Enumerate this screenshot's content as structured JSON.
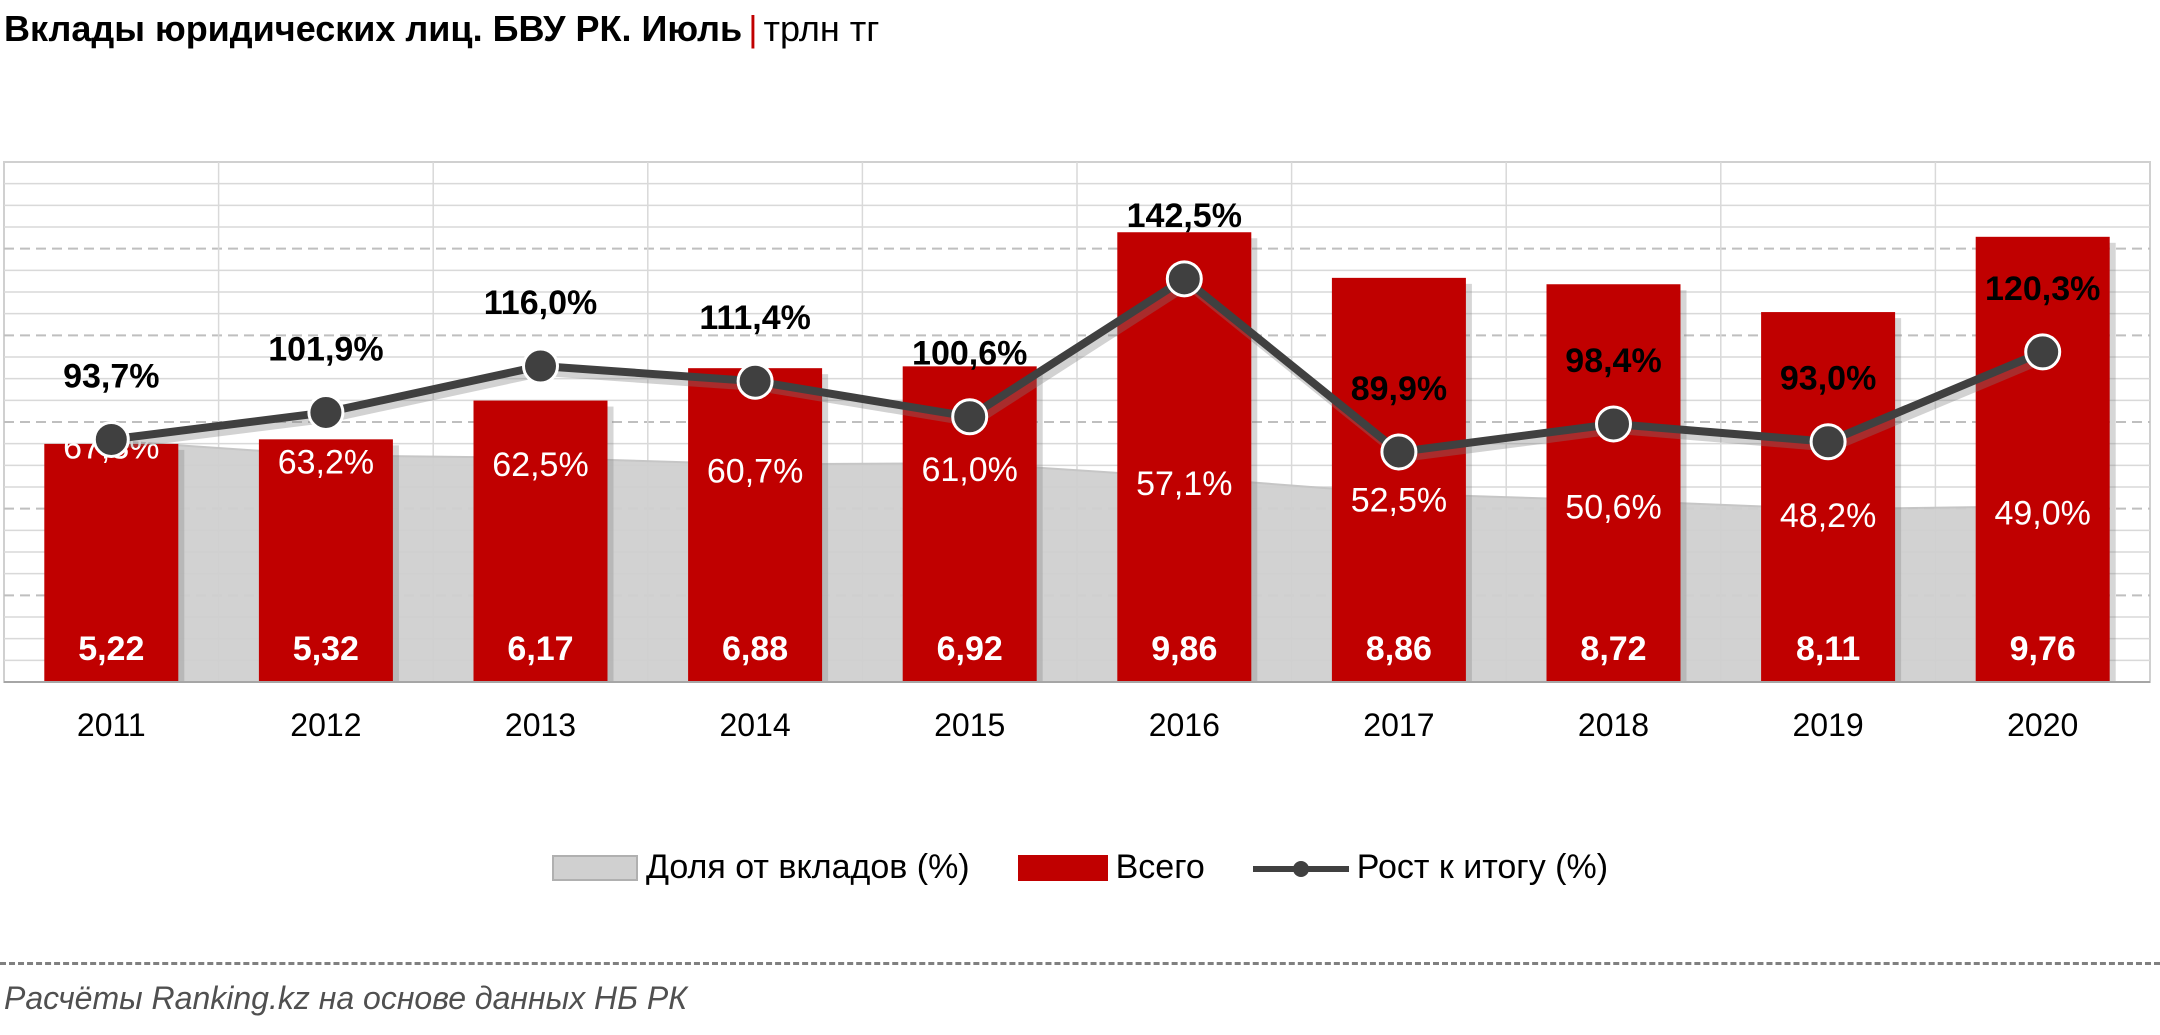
{
  "title": {
    "main": "Вклады юридических лиц. БВУ РК. Июль",
    "separator": "|",
    "unit": "трлн тг"
  },
  "legend": {
    "area": "Доля от вкладов (%)",
    "bar": "Всего",
    "line": "Рост к итогу (%)"
  },
  "source": "Расчёты Ranking.kz на основе данных  НБ РК",
  "colors": {
    "bar": "#c00000",
    "area": "#d0d0d0",
    "line": "#404040",
    "grid": "#d9d9d9"
  },
  "chart_data": {
    "type": "bar",
    "categories": [
      "2011",
      "2012",
      "2013",
      "2014",
      "2015",
      "2016",
      "2017",
      "2018",
      "2019",
      "2020"
    ],
    "series": [
      {
        "name": "Всего",
        "type": "bar",
        "values": [
          5.22,
          5.32,
          6.17,
          6.88,
          6.92,
          9.86,
          8.86,
          8.72,
          8.11,
          9.76
        ],
        "labels": [
          "5,22",
          "5,32",
          "6,17",
          "6,88",
          "6,92",
          "9,86",
          "8,86",
          "8,72",
          "8,11",
          "9,76"
        ]
      },
      {
        "name": "Доля от вкладов (%)",
        "type": "area",
        "values": [
          67.3,
          63.2,
          62.5,
          60.7,
          61.0,
          57.1,
          52.5,
          50.6,
          48.2,
          49.0
        ],
        "labels": [
          "67,3%",
          "63,2%",
          "62,5%",
          "60,7%",
          "61,0%",
          "57,1%",
          "52,5%",
          "50,6%",
          "48,2%",
          "49,0%"
        ]
      },
      {
        "name": "Рост к итогу (%)",
        "type": "line",
        "values": [
          93.7,
          101.9,
          116.0,
          111.4,
          100.6,
          142.5,
          89.9,
          98.4,
          93.0,
          120.3
        ],
        "labels": [
          "93,7%",
          "101,9%",
          "116,0%",
          "111,4%",
          "100,6%",
          "142,5%",
          "89,9%",
          "98,4%",
          "93,0%",
          "120,3%"
        ]
      }
    ],
    "legend_position": "bottom",
    "grid": true
  }
}
